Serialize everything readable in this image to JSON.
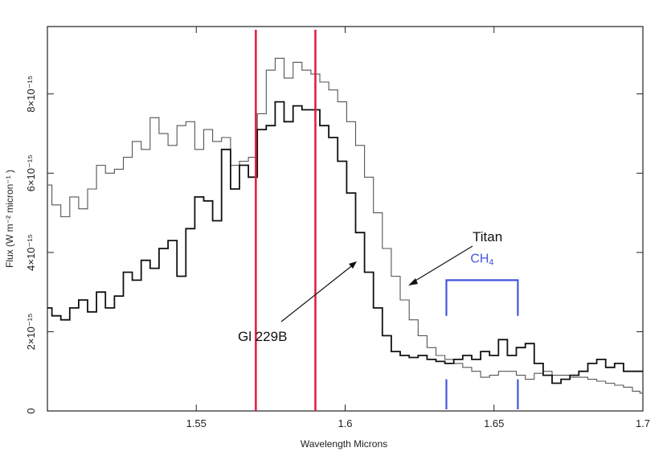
{
  "chart_data": {
    "type": "line",
    "title": "",
    "xlabel": "Wavelength   Microns",
    "ylabel": "Flux (W m⁻² micron⁻¹ )",
    "xlim": [
      1.5,
      1.7
    ],
    "ylim": [
      0,
      9.7e-15
    ],
    "x_ticks": [
      {
        "value": 1.55,
        "label": "1.55"
      },
      {
        "value": 1.6,
        "label": "1.6"
      },
      {
        "value": 1.65,
        "label": "1.65"
      },
      {
        "value": 1.7,
        "label": "1.7"
      }
    ],
    "y_ticks": [
      {
        "value": 0,
        "label": "0"
      },
      {
        "value": 2e-15,
        "label": "2×10⁻¹⁵"
      },
      {
        "value": 4e-15,
        "label": "4×10⁻¹⁵"
      },
      {
        "value": 6e-15,
        "label": "6×10⁻¹⁵"
      },
      {
        "value": 8e-15,
        "label": "8×10⁻¹⁵"
      }
    ],
    "grid": false,
    "series": [
      {
        "name": "Titan",
        "color": "#555555",
        "style": "step-thin",
        "x": [
          1.5,
          1.503,
          1.506,
          1.509,
          1.512,
          1.515,
          1.518,
          1.521,
          1.524,
          1.527,
          1.53,
          1.533,
          1.536,
          1.539,
          1.542,
          1.545,
          1.548,
          1.551,
          1.554,
          1.557,
          1.56,
          1.563,
          1.566,
          1.569,
          1.572,
          1.575,
          1.578,
          1.581,
          1.584,
          1.587,
          1.59,
          1.593,
          1.596,
          1.599,
          1.602,
          1.605,
          1.608,
          1.611,
          1.614,
          1.617,
          1.62,
          1.623,
          1.626,
          1.629,
          1.632,
          1.635,
          1.638,
          1.641,
          1.644,
          1.647,
          1.65,
          1.653,
          1.656,
          1.659,
          1.662,
          1.665,
          1.668,
          1.671,
          1.674,
          1.677,
          1.68,
          1.683,
          1.686,
          1.689,
          1.692,
          1.695,
          1.698,
          1.7
        ],
        "y": [
          5.7e-15,
          5.2e-15,
          4.9e-15,
          5.4e-15,
          5.1e-15,
          5.6e-15,
          6.2e-15,
          6e-15,
          6.1e-15,
          6.4e-15,
          6.8e-15,
          6.6e-15,
          7.4e-15,
          7e-15,
          6.7e-15,
          7.2e-15,
          7.3e-15,
          6.6e-15,
          7.1e-15,
          6.8e-15,
          6.9e-15,
          6.2e-15,
          6.3e-15,
          6.4e-15,
          7.5e-15,
          8.6e-15,
          8.9e-15,
          8.4e-15,
          8.8e-15,
          8.6e-15,
          8.5e-15,
          8.3e-15,
          8.1e-15,
          7.8e-15,
          7.3e-15,
          6.7e-15,
          5.9e-15,
          5e-15,
          4.1e-15,
          3.4e-15,
          2.8e-15,
          2.3e-15,
          1.9e-15,
          1.6e-15,
          1.4e-15,
          1.3e-15,
          1.2e-15,
          1.1e-15,
          1e-15,
          8.5e-16,
          9e-16,
          1e-15,
          1e-15,
          9e-16,
          8e-16,
          9.5e-16,
          1e-15,
          9e-16,
          9e-16,
          8.5e-16,
          8.5e-16,
          8e-16,
          7.5e-16,
          7e-16,
          6.5e-16,
          6e-16,
          5e-16,
          4.5e-16
        ]
      },
      {
        "name": "Gl 229B",
        "color": "#111111",
        "style": "step-thick",
        "x": [
          1.5,
          1.503,
          1.506,
          1.509,
          1.512,
          1.515,
          1.518,
          1.521,
          1.524,
          1.527,
          1.53,
          1.533,
          1.536,
          1.539,
          1.542,
          1.545,
          1.548,
          1.551,
          1.554,
          1.557,
          1.56,
          1.563,
          1.566,
          1.569,
          1.572,
          1.575,
          1.578,
          1.581,
          1.584,
          1.587,
          1.59,
          1.593,
          1.596,
          1.599,
          1.602,
          1.605,
          1.608,
          1.611,
          1.614,
          1.617,
          1.62,
          1.623,
          1.626,
          1.629,
          1.632,
          1.635,
          1.638,
          1.641,
          1.644,
          1.647,
          1.65,
          1.653,
          1.656,
          1.659,
          1.662,
          1.665,
          1.668,
          1.671,
          1.674,
          1.677,
          1.68,
          1.683,
          1.686,
          1.689,
          1.692,
          1.695,
          1.698,
          1.7
        ],
        "y": [
          2.6e-15,
          2.4e-15,
          2.3e-15,
          2.6e-15,
          2.8e-15,
          2.5e-15,
          3e-15,
          2.6e-15,
          2.9e-15,
          3.5e-15,
          3.3e-15,
          3.8e-15,
          3.6e-15,
          4.1e-15,
          4.3e-15,
          3.4e-15,
          4.6e-15,
          5.4e-15,
          5.3e-15,
          4.8e-15,
          6.6e-15,
          5.6e-15,
          6.2e-15,
          5.9e-15,
          7.1e-15,
          7.2e-15,
          7.8e-15,
          7.3e-15,
          7.7e-15,
          7.6e-15,
          7.6e-15,
          7.2e-15,
          6.9e-15,
          6.3e-15,
          5.5e-15,
          4.5e-15,
          3.5e-15,
          2.6e-15,
          1.9e-15,
          1.5e-15,
          1.4e-15,
          1.35e-15,
          1.4e-15,
          1.3e-15,
          1.25e-15,
          1.2e-15,
          1.3e-15,
          1.4e-15,
          1.3e-15,
          1.5e-15,
          1.4e-15,
          1.8e-15,
          1.4e-15,
          1.6e-15,
          1.7e-15,
          1.2e-15,
          9e-16,
          7e-16,
          8e-16,
          9e-16,
          1e-15,
          1.2e-15,
          1.3e-15,
          1.1e-15,
          1.2e-15,
          1e-15,
          1e-15,
          1e-15
        ]
      }
    ],
    "vertical_lines": [
      {
        "x": 1.57,
        "color": "#e0193c"
      },
      {
        "x": 1.59,
        "color": "#e0193c"
      }
    ],
    "band": {
      "label_main": "CH",
      "label_sub": "4",
      "x_start": 1.634,
      "x_end": 1.658,
      "color": "#4455dd"
    },
    "annotations": [
      {
        "text": "Titan",
        "points_to": "Titan"
      },
      {
        "text": "Gl 229B",
        "points_to": "Gl 229B"
      }
    ]
  }
}
